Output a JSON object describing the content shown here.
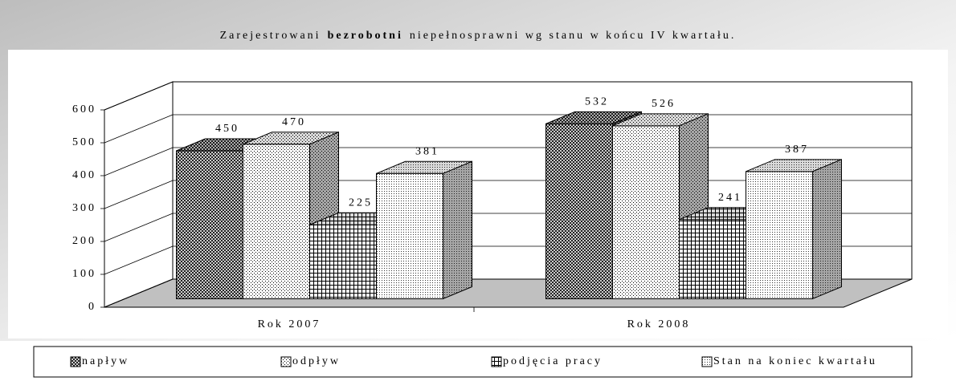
{
  "chart_data": {
    "type": "bar3d",
    "title": [
      "Zarejestrowani",
      "bezrobotni",
      "niepełnosprawni wg stanu w końcu IV kwartału."
    ],
    "categories": [
      "Rok 2007",
      "Rok 2008"
    ],
    "series": [
      {
        "name": "napływ",
        "pattern": "crosshatch",
        "values": [
          450,
          532
        ]
      },
      {
        "name": "odpływ",
        "pattern": "dots",
        "values": [
          470,
          526
        ]
      },
      {
        "name": "podjęcia pracy",
        "pattern": "grid",
        "values": [
          225,
          241
        ]
      },
      {
        "name": "Stan na koniec kwartału",
        "pattern": "finedots",
        "values": [
          381,
          387
        ]
      }
    ],
    "ylim": [
      0,
      600
    ],
    "yticks": [
      0,
      100,
      200,
      300,
      400,
      500,
      600
    ],
    "grid": true,
    "legend": "bottom"
  }
}
